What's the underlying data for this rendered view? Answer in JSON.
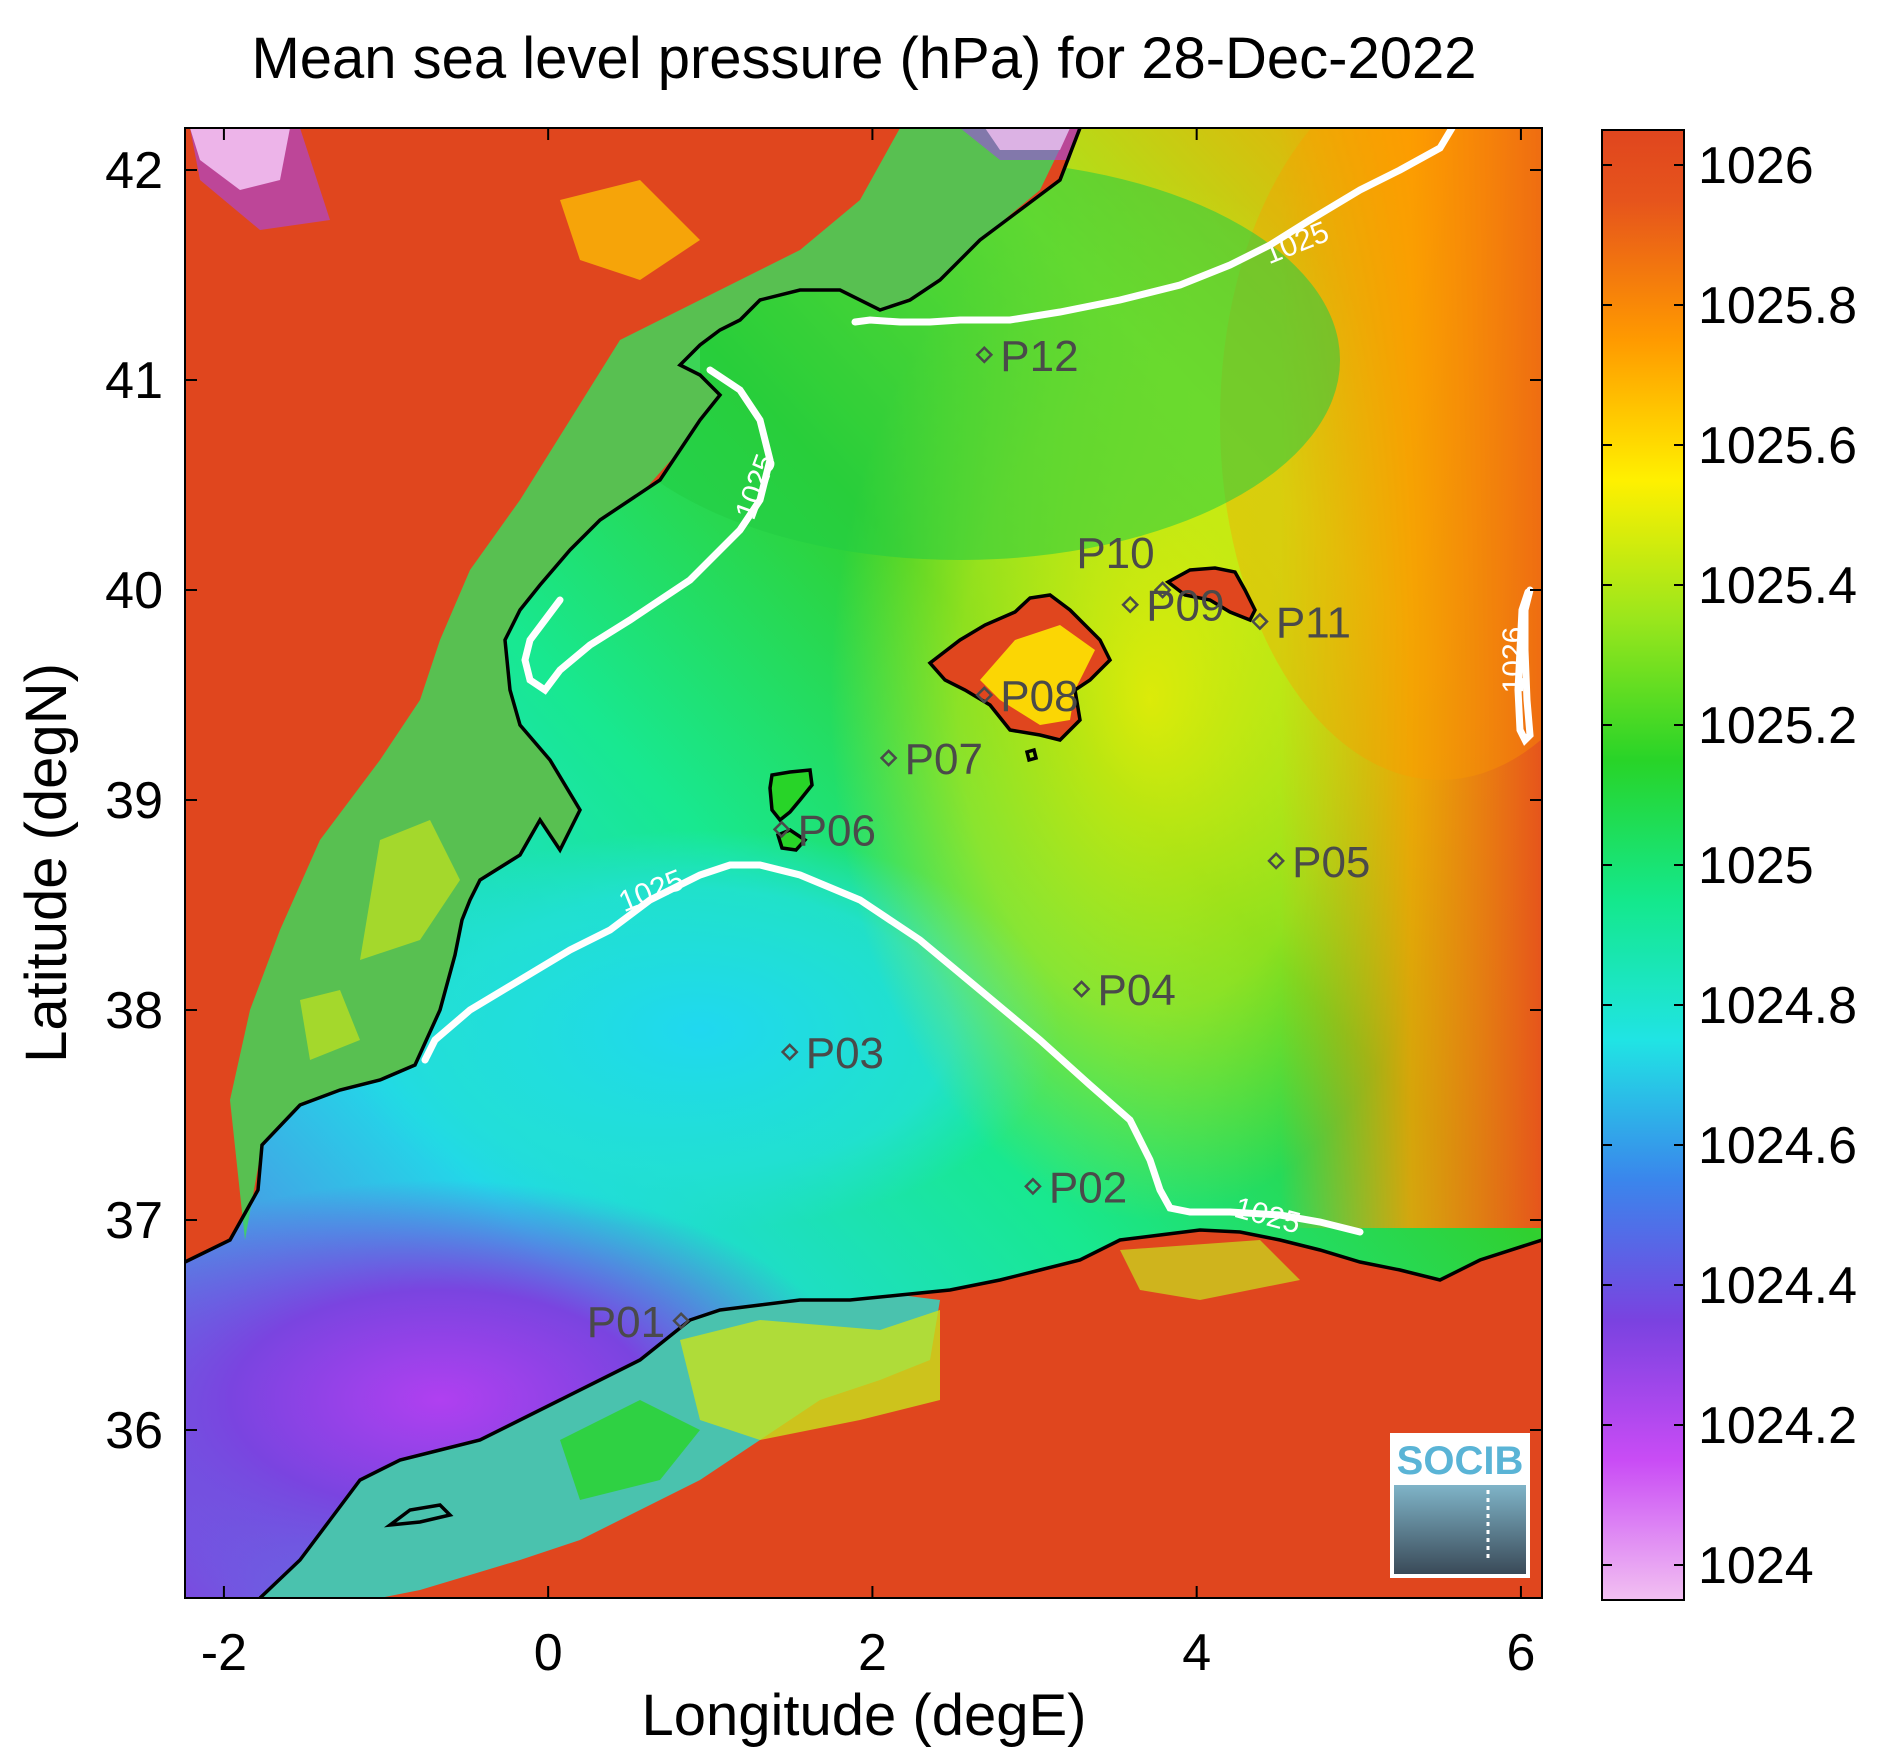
{
  "title": "Mean sea level pressure (hPa) for 28-Dec-2022",
  "xlabel": "Longitude (degE)",
  "ylabel": "Latitude (degN)",
  "x_ticks": [
    "-2",
    "0",
    "2",
    "4",
    "6"
  ],
  "y_ticks": [
    "36",
    "37",
    "38",
    "39",
    "40",
    "41",
    "42"
  ],
  "colorbar": {
    "ticks": [
      "1024",
      "1024.2",
      "1024.4",
      "1024.6",
      "1024.8",
      "1025",
      "1025.2",
      "1025.4",
      "1025.6",
      "1025.8",
      "1026"
    ],
    "range": [
      1023.95,
      1026.05
    ],
    "colors": [
      "#f2b6f2",
      "#c94cf5",
      "#7a42e0",
      "#3f7fe8",
      "#20e0e0",
      "#14e88c",
      "#28d428",
      "#96e61c",
      "#fff000",
      "#ff9a00",
      "#e44b1e"
    ]
  },
  "contours": [
    {
      "label": "1025"
    },
    {
      "label": "1025"
    },
    {
      "label": "1025"
    },
    {
      "label": "1025"
    },
    {
      "label": "1026"
    }
  ],
  "stations": [
    {
      "name": "P01",
      "lon": 0.82,
      "lat": 36.52
    },
    {
      "name": "P02",
      "lon": 2.99,
      "lat": 37.16
    },
    {
      "name": "P03",
      "lon": 1.49,
      "lat": 37.8
    },
    {
      "name": "P04",
      "lon": 3.29,
      "lat": 38.1
    },
    {
      "name": "P05",
      "lon": 4.49,
      "lat": 38.71
    },
    {
      "name": "P06",
      "lon": 1.44,
      "lat": 38.86
    },
    {
      "name": "P07",
      "lon": 2.1,
      "lat": 39.2
    },
    {
      "name": "P08",
      "lon": 2.69,
      "lat": 39.5
    },
    {
      "name": "P09",
      "lon": 3.59,
      "lat": 39.93
    },
    {
      "name": "P10",
      "lon": 3.79,
      "lat": 40.0
    },
    {
      "name": "P11",
      "lon": 4.39,
      "lat": 39.85
    },
    {
      "name": "P12",
      "lon": 2.69,
      "lat": 41.12
    }
  ],
  "logo_text": "SOCIB"
}
